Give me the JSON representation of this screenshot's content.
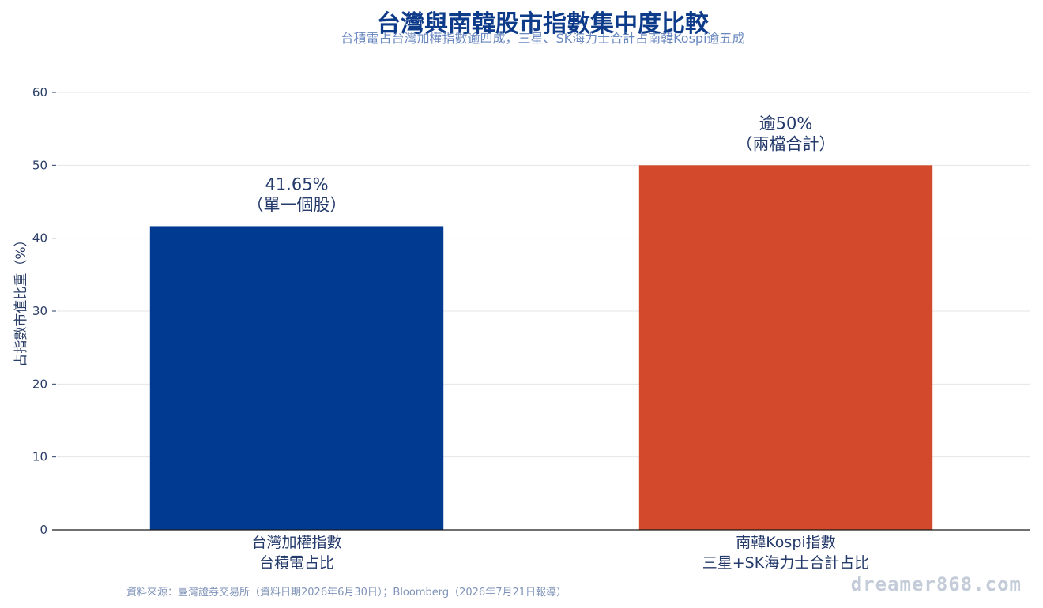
{
  "chart_data": {
    "type": "bar",
    "title": "台灣與南韓股市指數集中度比較",
    "subtitle": "台積電占台灣加權指數逾四成，三星、SK海力士合計占南韓Kospi逾五成",
    "ylabel": "占指數市值比重（%）",
    "ylim": [
      0,
      60
    ],
    "yticks": [
      0,
      10,
      20,
      30,
      40,
      50,
      60
    ],
    "grid": true,
    "categories": [
      [
        "台灣加權指數",
        "台積電占比"
      ],
      [
        "南韓Kospi指數",
        "三星+SK海力士合計占比"
      ]
    ],
    "values": [
      41.65,
      50
    ],
    "bar_colors": [
      "#003a91",
      "#d2492b"
    ],
    "data_labels": [
      [
        "41.65%",
        "（單一個股）"
      ],
      [
        "逾50%",
        "（兩檔合計）"
      ]
    ]
  },
  "source_note": "資料來源：臺灣證券交易所（資料日期2026年6月30日）；Bloomberg（2026年7月21日報導）",
  "watermark": "dreamer868.com"
}
